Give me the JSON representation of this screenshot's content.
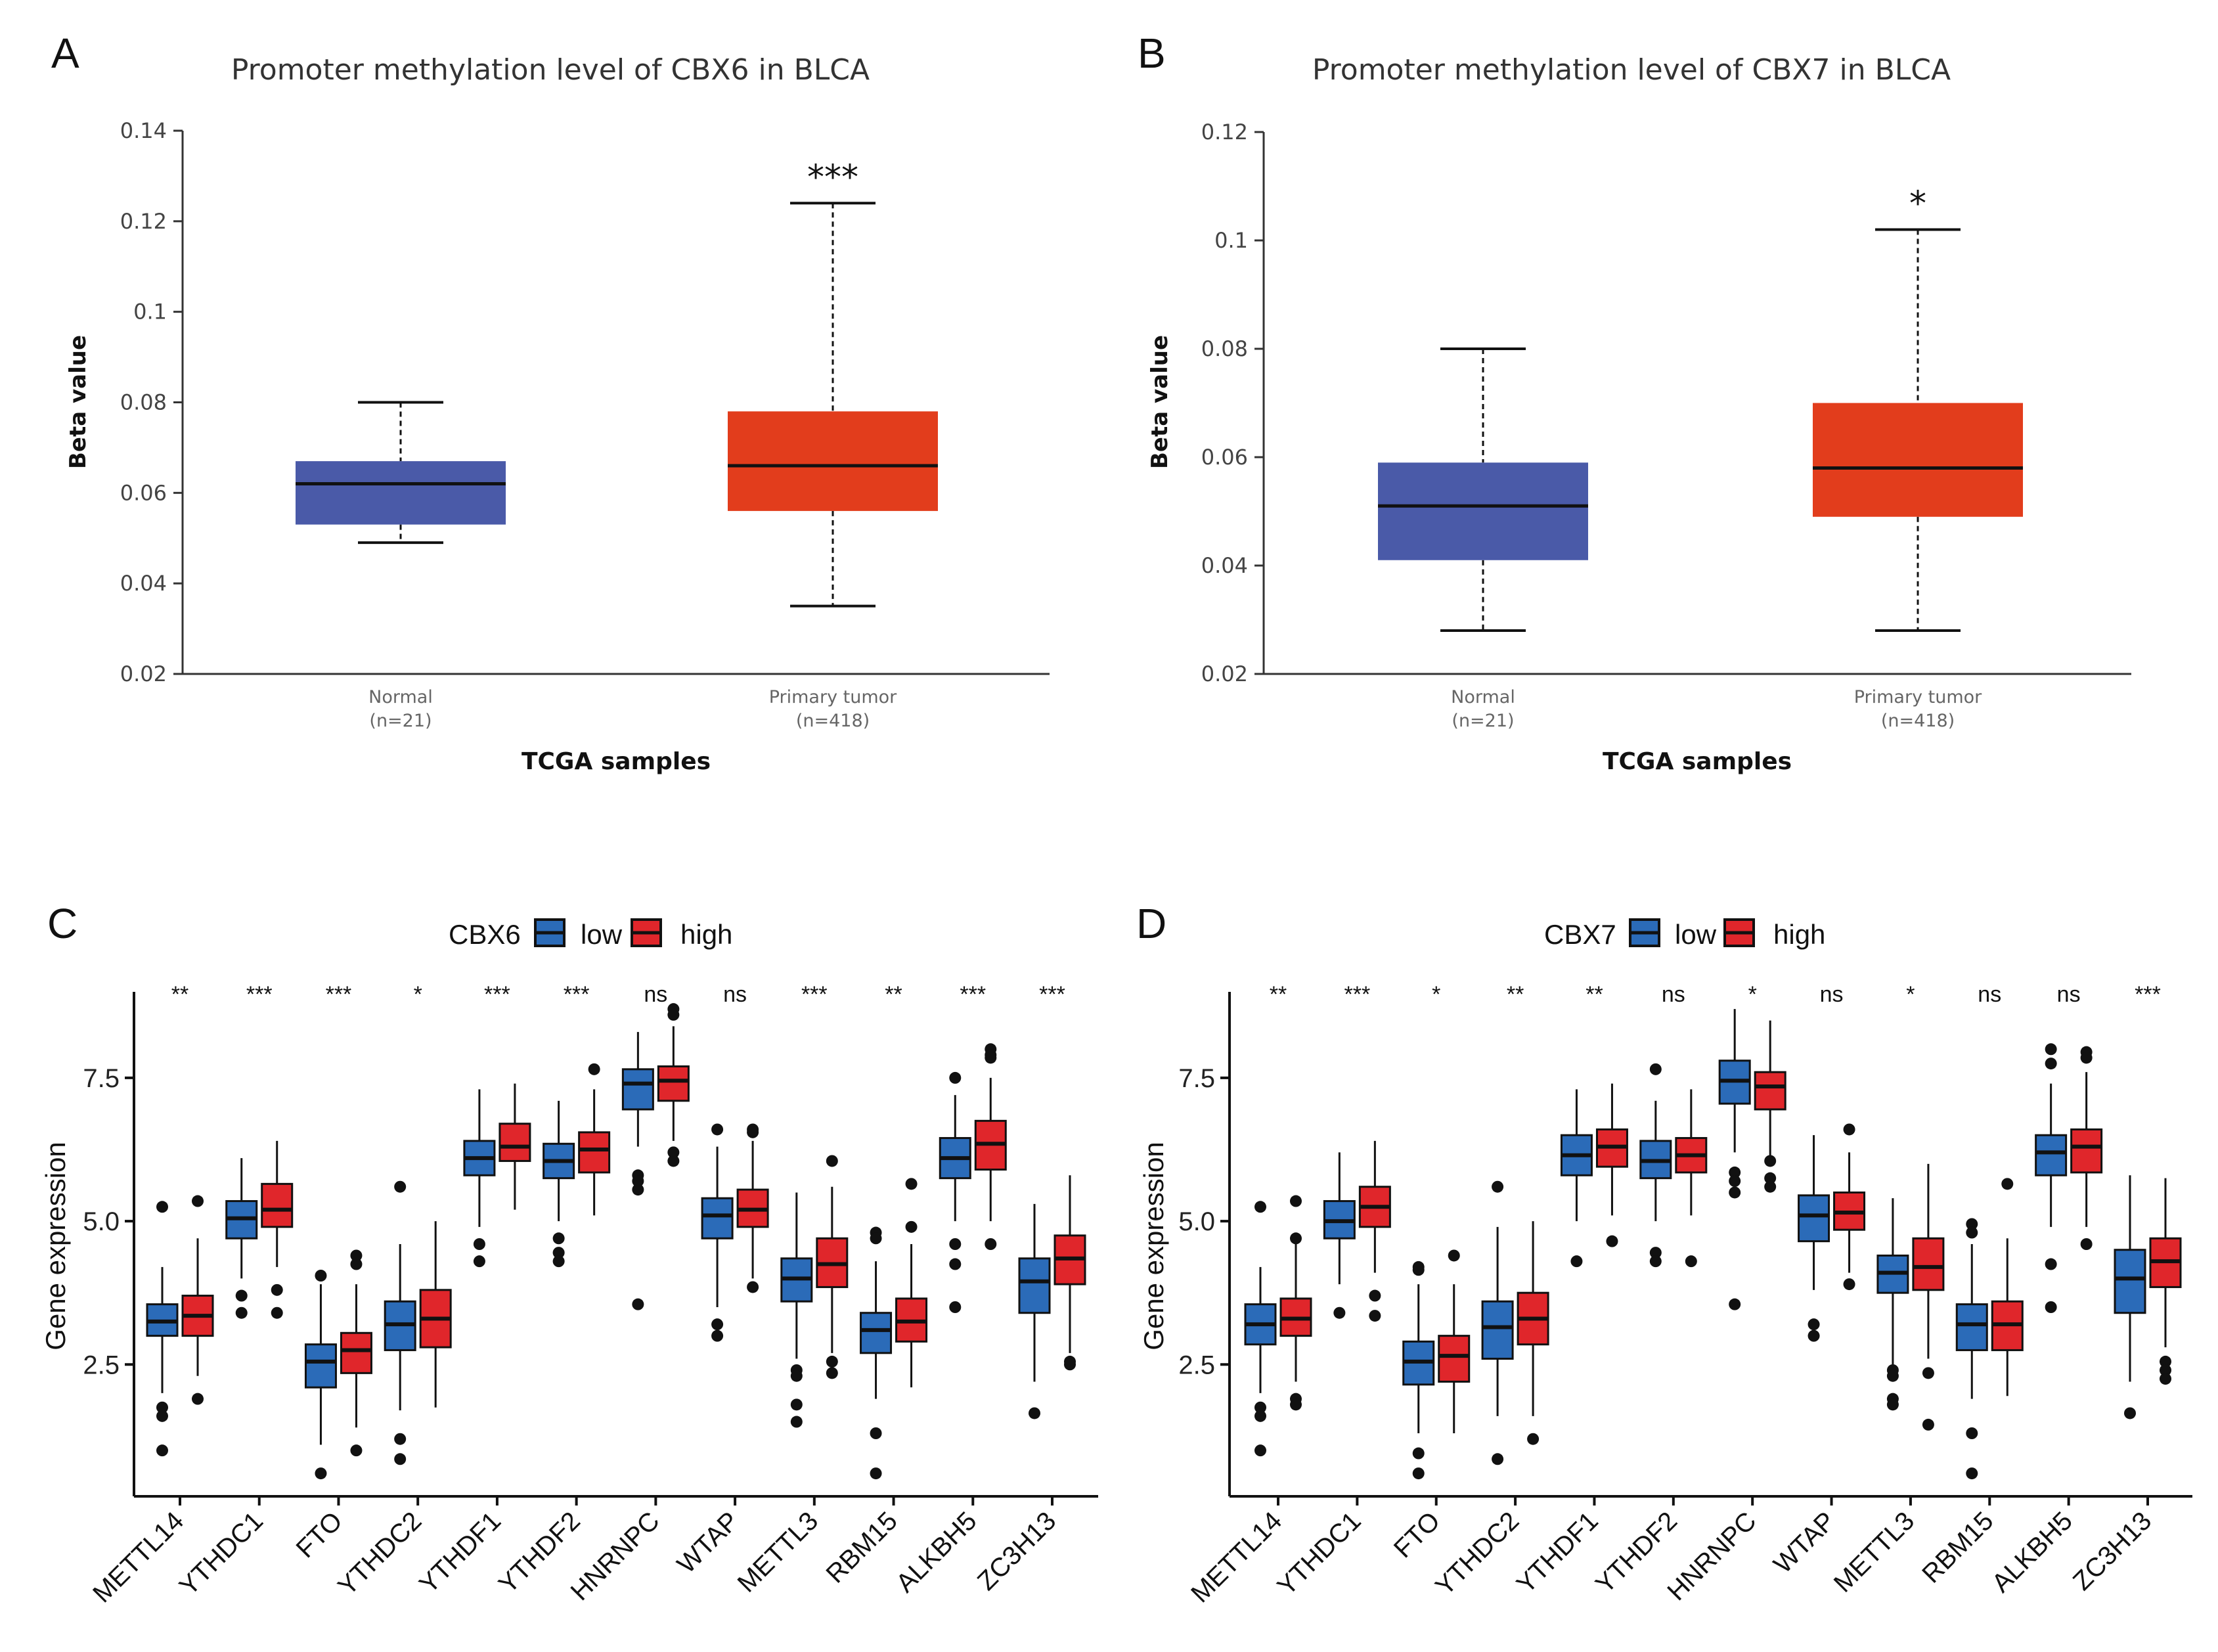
{
  "panels_labels": [
    "A",
    "B",
    "C",
    "D"
  ],
  "chart_data": [
    {
      "id": "A",
      "type": "box",
      "title": "Promoter methylation level of CBX6 in BLCA",
      "xlabel": "TCGA samples",
      "ylabel": "Beta value",
      "ylim": [
        0.02,
        0.14
      ],
      "yticks": [
        0.02,
        0.04,
        0.06,
        0.08,
        0.1,
        0.12,
        0.14
      ],
      "ytick_labels": [
        "0.02",
        "0.04",
        "0.06",
        "0.08",
        "0.1",
        "0.12",
        "0.14"
      ],
      "significance": "***",
      "groups": [
        {
          "name": "Normal",
          "n_label": "(n=21)",
          "color": "#4a5aa8",
          "min": 0.049,
          "q1": 0.053,
          "median": 0.062,
          "q3": 0.067,
          "max": 0.08
        },
        {
          "name": "Primary tumor",
          "n_label": "(n=418)",
          "color": "#e23d1c",
          "min": 0.035,
          "q1": 0.056,
          "median": 0.066,
          "q3": 0.078,
          "max": 0.124
        }
      ]
    },
    {
      "id": "B",
      "type": "box",
      "title": "Promoter methylation level of CBX7 in BLCA",
      "xlabel": "TCGA samples",
      "ylabel": "Beta value",
      "ylim": [
        0.02,
        0.12
      ],
      "yticks": [
        0.02,
        0.04,
        0.06,
        0.08,
        0.1,
        0.12
      ],
      "ytick_labels": [
        "0.02",
        "0.04",
        "0.06",
        "0.08",
        "0.1",
        "0.12"
      ],
      "significance": "*",
      "groups": [
        {
          "name": "Normal",
          "n_label": "(n=21)",
          "color": "#4a5aa8",
          "min": 0.028,
          "q1": 0.041,
          "median": 0.051,
          "q3": 0.059,
          "max": 0.08
        },
        {
          "name": "Primary tumor",
          "n_label": "(n=418)",
          "color": "#e23d1c",
          "min": 0.028,
          "q1": 0.049,
          "median": 0.058,
          "q3": 0.07,
          "max": 0.102
        }
      ]
    },
    {
      "id": "C",
      "type": "grouped_box",
      "legend_title": "CBX6",
      "legend": [
        {
          "name": "low",
          "color": "#2b6bb8"
        },
        {
          "name": "high",
          "color": "#e0262b"
        }
      ],
      "ylabel": "Gene expression",
      "ylim": [
        0.2,
        9.0
      ],
      "yticks": [
        2.5,
        5.0,
        7.5
      ],
      "ytick_labels": [
        "2.5",
        "5.0",
        "7.5"
      ],
      "genes": [
        {
          "name": "METTL14",
          "sig": "**",
          "low": {
            "min": 2.0,
            "q1": 3.0,
            "med": 3.25,
            "q3": 3.55,
            "max": 4.2,
            "out": [
              5.25,
              1.75,
              1.6,
              1.0
            ]
          },
          "high": {
            "min": 2.3,
            "q1": 3.0,
            "med": 3.35,
            "q3": 3.7,
            "max": 4.7,
            "out": [
              5.35,
              1.9
            ]
          }
        },
        {
          "name": "YTHDC1",
          "sig": "***",
          "low": {
            "min": 4.0,
            "q1": 4.7,
            "med": 5.05,
            "q3": 5.35,
            "max": 6.1,
            "out": [
              3.7,
              3.4
            ]
          },
          "high": {
            "min": 4.2,
            "q1": 4.9,
            "med": 5.2,
            "q3": 5.65,
            "max": 6.4,
            "out": [
              3.8,
              3.4
            ]
          }
        },
        {
          "name": "FTO",
          "sig": "***",
          "low": {
            "min": 1.1,
            "q1": 2.1,
            "med": 2.55,
            "q3": 2.85,
            "max": 3.9,
            "out": [
              4.05,
              0.6
            ]
          },
          "high": {
            "min": 1.4,
            "q1": 2.35,
            "med": 2.75,
            "q3": 3.05,
            "max": 3.9,
            "out": [
              4.4,
              4.25,
              1.0
            ]
          }
        },
        {
          "name": "YTHDC2",
          "sig": "*",
          "low": {
            "min": 1.7,
            "q1": 2.75,
            "med": 3.2,
            "q3": 3.6,
            "max": 4.6,
            "out": [
              5.6,
              1.2,
              0.85
            ]
          },
          "high": {
            "min": 1.75,
            "q1": 2.8,
            "med": 3.3,
            "q3": 3.8,
            "max": 5.0,
            "out": []
          }
        },
        {
          "name": "YTHDF1",
          "sig": "***",
          "low": {
            "min": 4.9,
            "q1": 5.8,
            "med": 6.1,
            "q3": 6.4,
            "max": 7.3,
            "out": [
              4.6,
              4.3
            ]
          },
          "high": {
            "min": 5.2,
            "q1": 6.05,
            "med": 6.3,
            "q3": 6.7,
            "max": 7.4,
            "out": []
          }
        },
        {
          "name": "YTHDF2",
          "sig": "***",
          "low": {
            "min": 5.0,
            "q1": 5.75,
            "med": 6.05,
            "q3": 6.35,
            "max": 7.1,
            "out": [
              4.7,
              4.45,
              4.3
            ]
          },
          "high": {
            "min": 5.1,
            "q1": 5.85,
            "med": 6.25,
            "q3": 6.55,
            "max": 7.3,
            "out": [
              7.65
            ]
          }
        },
        {
          "name": "HNRNPC",
          "sig": "ns",
          "low": {
            "min": 6.3,
            "q1": 6.95,
            "med": 7.4,
            "q3": 7.65,
            "max": 8.3,
            "out": [
              5.8,
              5.7,
              5.55,
              3.55
            ]
          },
          "high": {
            "min": 6.4,
            "q1": 7.1,
            "med": 7.45,
            "q3": 7.7,
            "max": 8.4,
            "out": [
              8.7,
              8.6,
              6.2,
              6.05
            ]
          }
        },
        {
          "name": "WTAP",
          "sig": "ns",
          "low": {
            "min": 3.5,
            "q1": 4.7,
            "med": 5.1,
            "q3": 5.4,
            "max": 6.3,
            "out": [
              6.6,
              3.2,
              3.0
            ]
          },
          "high": {
            "min": 4.0,
            "q1": 4.9,
            "med": 5.2,
            "q3": 5.55,
            "max": 6.4,
            "out": [
              6.6,
              6.55,
              3.85
            ]
          }
        },
        {
          "name": "METTL3",
          "sig": "***",
          "low": {
            "min": 2.6,
            "q1": 3.6,
            "med": 4.0,
            "q3": 4.35,
            "max": 5.5,
            "out": [
              2.4,
              2.3,
              1.8,
              1.5
            ]
          },
          "high": {
            "min": 2.7,
            "q1": 3.85,
            "med": 4.25,
            "q3": 4.7,
            "max": 5.6,
            "out": [
              6.05,
              2.55,
              2.35
            ]
          }
        },
        {
          "name": "RBM15",
          "sig": "**",
          "low": {
            "min": 1.9,
            "q1": 2.7,
            "med": 3.1,
            "q3": 3.4,
            "max": 4.3,
            "out": [
              4.8,
              4.7,
              1.3,
              0.6
            ]
          },
          "high": {
            "min": 2.1,
            "q1": 2.9,
            "med": 3.25,
            "q3": 3.65,
            "max": 4.6,
            "out": [
              5.65,
              4.9
            ]
          }
        },
        {
          "name": "ALKBH5",
          "sig": "***",
          "low": {
            "min": 5.0,
            "q1": 5.75,
            "med": 6.1,
            "q3": 6.45,
            "max": 7.2,
            "out": [
              7.5,
              4.6,
              4.25,
              3.5
            ]
          },
          "high": {
            "min": 5.0,
            "q1": 5.9,
            "med": 6.35,
            "q3": 6.75,
            "max": 7.5,
            "out": [
              8.0,
              7.9,
              7.85,
              4.6
            ]
          }
        },
        {
          "name": "ZC3H13",
          "sig": "***",
          "low": {
            "min": 2.2,
            "q1": 3.4,
            "med": 3.95,
            "q3": 4.35,
            "max": 5.3,
            "out": [
              1.65
            ]
          },
          "high": {
            "min": 2.7,
            "q1": 3.9,
            "med": 4.35,
            "q3": 4.75,
            "max": 5.8,
            "out": [
              2.55,
              2.5
            ]
          }
        }
      ]
    },
    {
      "id": "D",
      "type": "grouped_box",
      "legend_title": "CBX7",
      "legend": [
        {
          "name": "low",
          "color": "#2b6bb8"
        },
        {
          "name": "high",
          "color": "#e0262b"
        }
      ],
      "ylabel": "Gene expression",
      "ylim": [
        0.2,
        9.0
      ],
      "yticks": [
        2.5,
        5.0,
        7.5
      ],
      "ytick_labels": [
        "2.5",
        "5.0",
        "7.5"
      ],
      "genes": [
        {
          "name": "METTL14",
          "sig": "**",
          "low": {
            "min": 2.0,
            "q1": 2.85,
            "med": 3.2,
            "q3": 3.55,
            "max": 4.2,
            "out": [
              5.25,
              1.75,
              1.6,
              1.0
            ]
          },
          "high": {
            "min": 2.2,
            "q1": 3.0,
            "med": 3.3,
            "q3": 3.65,
            "max": 4.6,
            "out": [
              5.35,
              4.7,
              1.9,
              1.8
            ]
          }
        },
        {
          "name": "YTHDC1",
          "sig": "***",
          "low": {
            "min": 3.9,
            "q1": 4.7,
            "med": 5.0,
            "q3": 5.35,
            "max": 6.2,
            "out": [
              3.4
            ]
          },
          "high": {
            "min": 4.1,
            "q1": 4.9,
            "med": 5.25,
            "q3": 5.6,
            "max": 6.4,
            "out": [
              3.7,
              3.35
            ]
          }
        },
        {
          "name": "FTO",
          "sig": "*",
          "low": {
            "min": 1.3,
            "q1": 2.15,
            "med": 2.55,
            "q3": 2.9,
            "max": 3.9,
            "out": [
              4.2,
              4.15,
              0.95,
              0.6
            ]
          },
          "high": {
            "min": 1.3,
            "q1": 2.2,
            "med": 2.65,
            "q3": 3.0,
            "max": 3.9,
            "out": [
              4.4
            ]
          }
        },
        {
          "name": "YTHDC2",
          "sig": "**",
          "low": {
            "min": 1.6,
            "q1": 2.6,
            "med": 3.15,
            "q3": 3.6,
            "max": 4.9,
            "out": [
              5.6,
              0.85
            ]
          },
          "high": {
            "min": 1.6,
            "q1": 2.85,
            "med": 3.3,
            "q3": 3.75,
            "max": 5.0,
            "out": [
              1.2
            ]
          }
        },
        {
          "name": "YTHDF1",
          "sig": "**",
          "low": {
            "min": 5.0,
            "q1": 5.8,
            "med": 6.15,
            "q3": 6.5,
            "max": 7.3,
            "out": [
              4.3
            ]
          },
          "high": {
            "min": 5.1,
            "q1": 5.95,
            "med": 6.3,
            "q3": 6.6,
            "max": 7.4,
            "out": [
              4.65
            ]
          }
        },
        {
          "name": "YTHDF2",
          "sig": "ns",
          "low": {
            "min": 5.0,
            "q1": 5.75,
            "med": 6.05,
            "q3": 6.4,
            "max": 7.1,
            "out": [
              7.65,
              4.45,
              4.3
            ]
          },
          "high": {
            "min": 5.1,
            "q1": 5.85,
            "med": 6.15,
            "q3": 6.45,
            "max": 7.3,
            "out": [
              4.3
            ]
          }
        },
        {
          "name": "HNRNPC",
          "sig": "*",
          "low": {
            "min": 6.2,
            "q1": 7.05,
            "med": 7.45,
            "q3": 7.8,
            "max": 8.7,
            "out": [
              5.85,
              5.7,
              5.5,
              3.55
            ]
          },
          "high": {
            "min": 6.1,
            "q1": 6.95,
            "med": 7.35,
            "q3": 7.6,
            "max": 8.5,
            "out": [
              6.05,
              5.75,
              5.6
            ]
          }
        },
        {
          "name": "WTAP",
          "sig": "ns",
          "low": {
            "min": 3.8,
            "q1": 4.65,
            "med": 5.1,
            "q3": 5.45,
            "max": 6.5,
            "out": [
              3.2,
              3.0
            ]
          },
          "high": {
            "min": 4.1,
            "q1": 4.85,
            "med": 5.15,
            "q3": 5.5,
            "max": 6.2,
            "out": [
              6.6,
              3.9
            ]
          }
        },
        {
          "name": "METTL3",
          "sig": "*",
          "low": {
            "min": 2.5,
            "q1": 3.75,
            "med": 4.1,
            "q3": 4.4,
            "max": 5.4,
            "out": [
              2.4,
              2.3,
              1.9,
              1.8
            ]
          },
          "high": {
            "min": 2.6,
            "q1": 3.8,
            "med": 4.2,
            "q3": 4.7,
            "max": 6.0,
            "out": [
              2.35,
              1.45
            ]
          }
        },
        {
          "name": "RBM15",
          "sig": "ns",
          "low": {
            "min": 1.9,
            "q1": 2.75,
            "med": 3.2,
            "q3": 3.55,
            "max": 4.6,
            "out": [
              4.95,
              4.8,
              1.3,
              0.6
            ]
          },
          "high": {
            "min": 1.95,
            "q1": 2.75,
            "med": 3.2,
            "q3": 3.6,
            "max": 4.7,
            "out": [
              5.65
            ]
          }
        },
        {
          "name": "ALKBH5",
          "sig": "ns",
          "low": {
            "min": 4.9,
            "q1": 5.8,
            "med": 6.2,
            "q3": 6.5,
            "max": 7.4,
            "out": [
              8.0,
              7.75,
              4.25,
              3.5
            ]
          },
          "high": {
            "min": 4.9,
            "q1": 5.85,
            "med": 6.3,
            "q3": 6.6,
            "max": 7.6,
            "out": [
              7.95,
              7.85,
              4.6
            ]
          }
        },
        {
          "name": "ZC3H13",
          "sig": "***",
          "low": {
            "min": 2.2,
            "q1": 3.4,
            "med": 4.0,
            "q3": 4.5,
            "max": 5.8,
            "out": [
              1.65
            ]
          },
          "high": {
            "min": 2.8,
            "q1": 3.85,
            "med": 4.3,
            "q3": 4.7,
            "max": 5.75,
            "out": [
              2.55,
              2.4,
              2.25
            ]
          }
        }
      ]
    }
  ]
}
